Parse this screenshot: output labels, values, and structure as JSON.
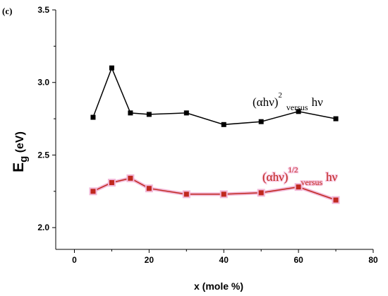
{
  "chart_data": {
    "type": "line",
    "panel_label": "(c)",
    "xlabel": "x (mole %)",
    "ylabel_main": "E",
    "ylabel_sub": "g",
    "ylabel_unit": " (eV)",
    "xlim": [
      -5,
      80
    ],
    "ylim": [
      1.85,
      3.5
    ],
    "xticks": [
      0,
      20,
      40,
      60,
      80
    ],
    "yticks": [
      2.0,
      2.5,
      3.0,
      3.5
    ],
    "ytick_labels": [
      "2.0",
      "2.5",
      "3.0",
      "3.5"
    ],
    "grid": false,
    "series": [
      {
        "x": [
          5,
          10,
          15,
          20,
          30,
          40,
          50,
          60,
          70
        ],
        "y": [
          2.76,
          3.1,
          2.79,
          2.78,
          2.79,
          2.71,
          2.73,
          2.8,
          2.75
        ],
        "color": "#000000",
        "label_base": "(αhν)",
        "label_exp": "2",
        "label_versus": "versus",
        "label_tail": "hν"
      },
      {
        "x": [
          5,
          10,
          15,
          20,
          30,
          40,
          50,
          60,
          70
        ],
        "y": [
          2.25,
          2.31,
          2.34,
          2.27,
          2.23,
          2.23,
          2.24,
          2.28,
          2.19
        ],
        "color": "#c0281e",
        "glow": "#f2b8d8",
        "label_base": "(αhν)",
        "label_exp": "1/2",
        "label_versus": "versus",
        "label_tail": "hν"
      }
    ]
  }
}
